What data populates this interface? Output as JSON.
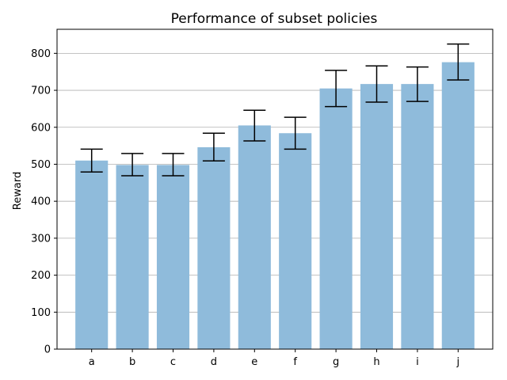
{
  "chart_data": {
    "type": "bar",
    "title": "Performance of subset policies",
    "xlabel": "",
    "ylabel": "Reward",
    "categories": [
      "a",
      "b",
      "c",
      "d",
      "e",
      "f",
      "g",
      "h",
      "i",
      "j"
    ],
    "values": [
      510,
      498,
      498,
      546,
      605,
      584,
      705,
      717,
      717,
      776
    ],
    "error_low": [
      479,
      469,
      469,
      509,
      563,
      541,
      656,
      668,
      670,
      728
    ],
    "error_high": [
      541,
      529,
      529,
      584,
      646,
      627,
      754,
      766,
      763,
      825
    ],
    "ylim": [
      0,
      865
    ],
    "yticks": [
      0,
      100,
      200,
      300,
      400,
      500,
      600,
      700,
      800
    ],
    "grid": "y",
    "legend": "none",
    "bar_color": "#8fbbdb",
    "error_color": "#000000"
  }
}
